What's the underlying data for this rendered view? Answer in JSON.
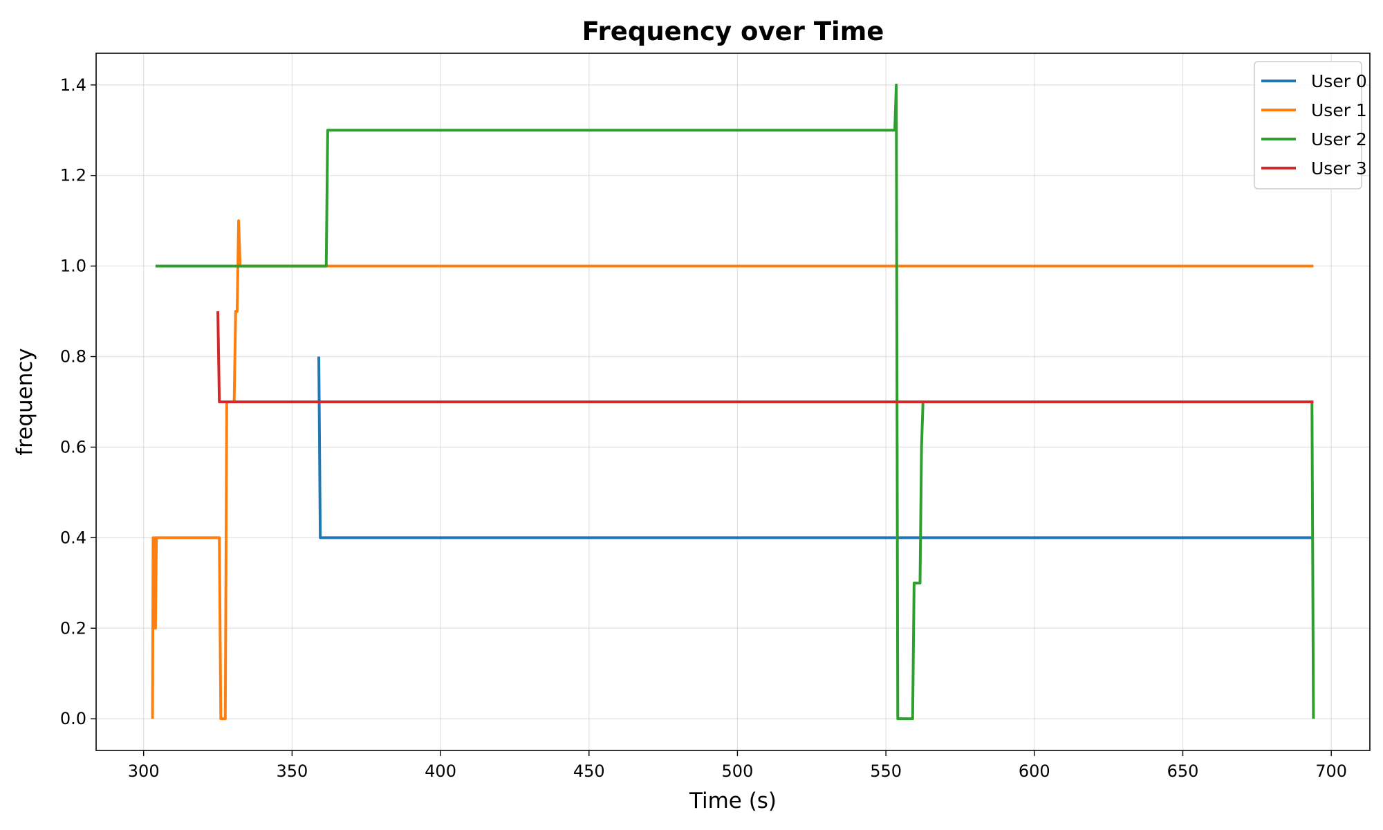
{
  "chart_data": {
    "type": "line",
    "title": "Frequency over Time",
    "xlabel": "Time (s)",
    "ylabel": "frequency",
    "xlim": [
      284,
      713
    ],
    "ylim": [
      -0.07,
      1.47
    ],
    "xticks": [
      300,
      350,
      400,
      450,
      500,
      550,
      600,
      650,
      700
    ],
    "yticks": [
      0.0,
      0.2,
      0.4,
      0.6,
      0.8,
      1.0,
      1.2,
      1.4
    ],
    "xtick_labels": [
      "300",
      "350",
      "400",
      "450",
      "500",
      "550",
      "600",
      "650",
      "700"
    ],
    "ytick_labels": [
      "0.0",
      "0.2",
      "0.4",
      "0.6",
      "0.8",
      "1.0",
      "1.2",
      "1.4"
    ],
    "grid": true,
    "legend_position": "top-right",
    "series": [
      {
        "name": "User 0",
        "color": "#1f77b4",
        "x": [
          359,
          359.5,
          693.5,
          694
        ],
        "y": [
          0.8,
          0.4,
          0.4,
          0.4
        ]
      },
      {
        "name": "User 1",
        "color": "#ff7f0e",
        "x": [
          303,
          303.2,
          303.5,
          303.8,
          304,
          304.3,
          325.5,
          326,
          327.5,
          328,
          330.5,
          331,
          331.5,
          332,
          332.5,
          694
        ],
        "y": [
          0.0,
          0.4,
          0.2,
          0.4,
          0.2,
          0.4,
          0.4,
          0.0,
          0.0,
          0.7,
          0.7,
          0.9,
          0.9,
          1.1,
          1.0,
          1.0
        ]
      },
      {
        "name": "User 2",
        "color": "#2ca02c",
        "x": [
          304,
          361.5,
          362,
          553,
          553.5,
          554,
          559,
          559.5,
          561.5,
          562,
          562.5,
          693.5,
          694
        ],
        "y": [
          1.0,
          1.0,
          1.3,
          1.3,
          1.4,
          0.0,
          0.0,
          0.3,
          0.3,
          0.6,
          0.7,
          0.7,
          0.0
        ]
      },
      {
        "name": "User 3",
        "color": "#d62728",
        "x": [
          325,
          325.5,
          694
        ],
        "y": [
          0.9,
          0.7,
          0.7
        ]
      }
    ]
  }
}
